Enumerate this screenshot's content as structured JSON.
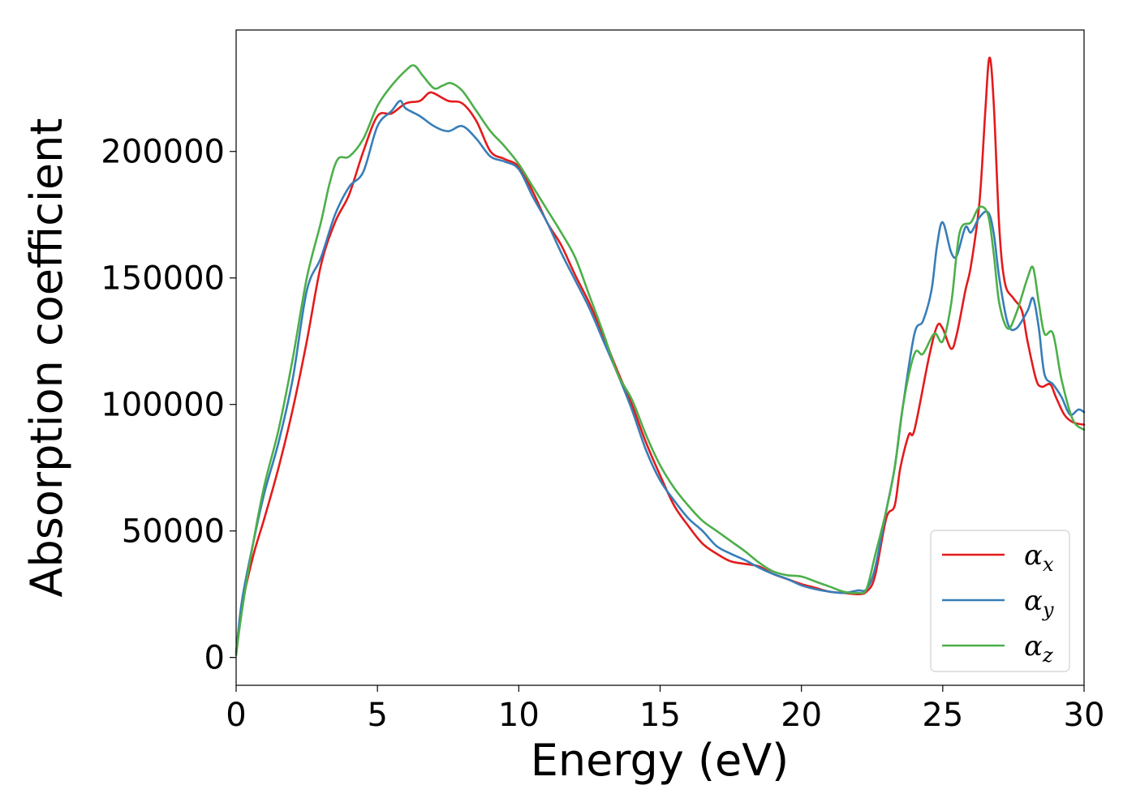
{
  "chart_data": {
    "type": "line",
    "xlabel": "Energy (eV)",
    "ylabel": "Absorption coefficient",
    "xlim": [
      0,
      30
    ],
    "ylim": [
      -11000,
      248000
    ],
    "xticks": [
      0,
      5,
      10,
      15,
      20,
      25,
      30
    ],
    "yticks": [
      0,
      50000,
      100000,
      150000,
      200000
    ],
    "grid": false,
    "legend_position": "lower-right",
    "series": [
      {
        "name": "α_x",
        "label_main": "α",
        "label_sub": "x",
        "color": "#e41a1c",
        "x": [
          0,
          0.2,
          0.6,
          1.0,
          1.5,
          2.0,
          2.5,
          3.0,
          3.5,
          4.0,
          4.5,
          5.0,
          5.5,
          6.0,
          6.5,
          6.8,
          7.0,
          7.5,
          8.0,
          8.5,
          9.0,
          9.5,
          10.0,
          10.5,
          11.0,
          11.5,
          12.0,
          12.5,
          13.0,
          13.5,
          14.0,
          14.5,
          15.0,
          15.5,
          16.0,
          16.5,
          17.0,
          17.5,
          18.0,
          18.5,
          19.0,
          19.5,
          20.0,
          20.5,
          21.0,
          21.5,
          22.0,
          22.3,
          22.6,
          23.0,
          23.3,
          23.5,
          23.8,
          24.0,
          24.5,
          24.8,
          25.0,
          25.3,
          25.5,
          25.8,
          26.0,
          26.3,
          26.5,
          26.65,
          26.8,
          27.0,
          27.2,
          27.5,
          27.8,
          28.0,
          28.3,
          28.5,
          28.8,
          29.0,
          29.3,
          29.6,
          30.0
        ],
        "y": [
          2000,
          20000,
          40000,
          55000,
          75000,
          98000,
          125000,
          155000,
          172000,
          183000,
          200000,
          214000,
          215000,
          219000,
          220000,
          223000,
          223000,
          220000,
          219000,
          212000,
          200000,
          197000,
          194000,
          184000,
          172000,
          163000,
          151000,
          140000,
          127000,
          113000,
          100000,
          85000,
          72000,
          60000,
          52000,
          45000,
          41000,
          38000,
          37000,
          36000,
          33000,
          31000,
          29000,
          27500,
          26000,
          25500,
          25000,
          26000,
          32000,
          55000,
          60000,
          75000,
          88000,
          90000,
          118000,
          131000,
          130000,
          122000,
          128000,
          145000,
          155000,
          180000,
          215000,
          237000,
          220000,
          170000,
          148000,
          142000,
          137000,
          125000,
          110000,
          107000,
          108000,
          103000,
          96000,
          93000,
          92000
        ]
      },
      {
        "name": "α_y",
        "label_main": "α",
        "label_sub": "y",
        "color": "#377eb8",
        "x": [
          0,
          0.2,
          0.6,
          1.0,
          1.5,
          2.0,
          2.5,
          3.0,
          3.5,
          4.0,
          4.5,
          5.0,
          5.5,
          5.8,
          6.0,
          6.5,
          7.0,
          7.5,
          8.0,
          8.5,
          9.0,
          9.5,
          10.0,
          10.5,
          11.0,
          11.5,
          12.0,
          12.5,
          13.0,
          13.5,
          14.0,
          14.5,
          15.0,
          15.5,
          16.0,
          16.5,
          17.0,
          17.5,
          18.0,
          18.5,
          19.0,
          19.5,
          20.0,
          20.5,
          21.0,
          21.5,
          22.0,
          22.3,
          22.6,
          23.0,
          23.3,
          23.6,
          24.0,
          24.3,
          24.6,
          24.8,
          25.0,
          25.3,
          25.5,
          25.8,
          26.0,
          26.3,
          26.6,
          26.8,
          27.0,
          27.3,
          27.6,
          28.0,
          28.2,
          28.4,
          28.6,
          28.9,
          29.2,
          29.5,
          29.8,
          30.0
        ],
        "y": [
          1000,
          22000,
          45000,
          65000,
          85000,
          110000,
          145000,
          158000,
          175000,
          186000,
          192000,
          210000,
          216000,
          220000,
          217000,
          214000,
          210000,
          208000,
          210000,
          205000,
          198000,
          196000,
          193000,
          182000,
          172000,
          160000,
          149000,
          138000,
          125000,
          112000,
          98000,
          82000,
          70000,
          62000,
          55000,
          50000,
          44000,
          41000,
          38500,
          35500,
          33000,
          31000,
          28500,
          27000,
          26000,
          25500,
          26500,
          27000,
          35000,
          58000,
          75000,
          100000,
          128000,
          133000,
          145000,
          163000,
          172000,
          160000,
          159000,
          170000,
          168000,
          174000,
          176000,
          168000,
          150000,
          132000,
          130000,
          137000,
          142000,
          130000,
          112000,
          108000,
          103000,
          96000,
          98000,
          97000
        ]
      },
      {
        "name": "α_z",
        "label_main": "α",
        "label_sub": "z",
        "color": "#4daf4a",
        "x": [
          0,
          0.2,
          0.6,
          1.0,
          1.5,
          2.0,
          2.5,
          3.0,
          3.3,
          3.6,
          4.0,
          4.5,
          5.0,
          5.5,
          6.0,
          6.3,
          6.6,
          7.0,
          7.3,
          7.6,
          8.0,
          8.5,
          9.0,
          9.5,
          10.0,
          10.5,
          11.0,
          11.5,
          12.0,
          12.5,
          13.0,
          13.5,
          14.0,
          14.5,
          15.0,
          15.5,
          16.0,
          16.5,
          17.0,
          17.5,
          18.0,
          18.5,
          19.0,
          19.5,
          20.0,
          20.5,
          21.0,
          21.5,
          22.0,
          22.3,
          22.6,
          23.0,
          23.3,
          23.6,
          24.0,
          24.3,
          24.7,
          25.0,
          25.3,
          25.6,
          26.0,
          26.3,
          26.6,
          26.8,
          27.0,
          27.3,
          27.6,
          28.0,
          28.2,
          28.4,
          28.6,
          28.9,
          29.2,
          29.6,
          30.0
        ],
        "y": [
          1000,
          18000,
          45000,
          68000,
          90000,
          118000,
          150000,
          172000,
          187000,
          197000,
          198000,
          205000,
          218000,
          226000,
          232000,
          234000,
          230000,
          225000,
          226000,
          227000,
          224000,
          216000,
          208000,
          202000,
          195000,
          186000,
          177000,
          168000,
          158000,
          143000,
          128000,
          112000,
          102000,
          88000,
          76000,
          67000,
          60000,
          54000,
          50000,
          46000,
          42000,
          37500,
          34000,
          32500,
          32000,
          30000,
          28000,
          26000,
          25500,
          27000,
          40000,
          58000,
          75000,
          100000,
          120000,
          120000,
          128000,
          125000,
          140000,
          168000,
          172000,
          178000,
          175000,
          160000,
          140000,
          130000,
          136000,
          150000,
          154000,
          140000,
          128000,
          128000,
          110000,
          94000,
          90000
        ]
      }
    ]
  }
}
